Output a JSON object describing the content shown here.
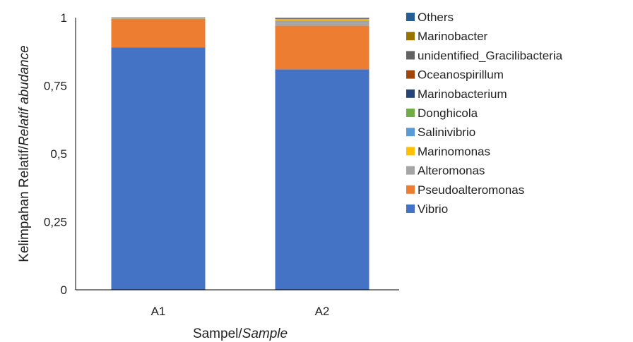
{
  "chart_data": {
    "type": "bar",
    "stacked": true,
    "categories": [
      "A1",
      "A2"
    ],
    "xlabel": {
      "plain": "Sampel/",
      "italic": "Sample"
    },
    "ylabel": {
      "plain": "Kelimpahan Relatif/",
      "italic": "Relatif abudance"
    },
    "ylim": [
      0,
      1
    ],
    "yticks": [
      "0",
      "0,25",
      "0,5",
      "0,75",
      "1"
    ],
    "ytick_values": [
      0,
      0.25,
      0.5,
      0.75,
      1
    ],
    "grid": false,
    "legend_position": "right",
    "series": [
      {
        "name": "Vibrio",
        "color": "#4472C4",
        "values": [
          0.89,
          0.81
        ]
      },
      {
        "name": "Pseudoalteromonas",
        "color": "#ED7D31",
        "values": [
          0.105,
          0.16
        ]
      },
      {
        "name": "Alteromonas",
        "color": "#A5A5A5",
        "values": [
          0.002,
          0.02
        ]
      },
      {
        "name": "Marinomonas",
        "color": "#FFC000",
        "values": [
          0.0005,
          0.003
        ]
      },
      {
        "name": "Salinivibrio",
        "color": "#5B9BD5",
        "values": [
          0.0005,
          0.001
        ]
      },
      {
        "name": "Donghicola",
        "color": "#70AD47",
        "values": [
          0.0005,
          0.001
        ]
      },
      {
        "name": "Marinobacterium",
        "color": "#264478",
        "values": [
          0.0005,
          0.001
        ]
      },
      {
        "name": "Oceanospirillum",
        "color": "#9E480E",
        "values": [
          0.0005,
          0.001
        ]
      },
      {
        "name": "unidentified_Gracilibacteria",
        "color": "#636363",
        "values": [
          0.0005,
          0.001
        ]
      },
      {
        "name": "Marinobacter",
        "color": "#997300",
        "values": [
          0.0005,
          0.001
        ]
      },
      {
        "name": "Others",
        "color": "#255E91",
        "values": [
          0.0005,
          0.001
        ]
      }
    ]
  }
}
